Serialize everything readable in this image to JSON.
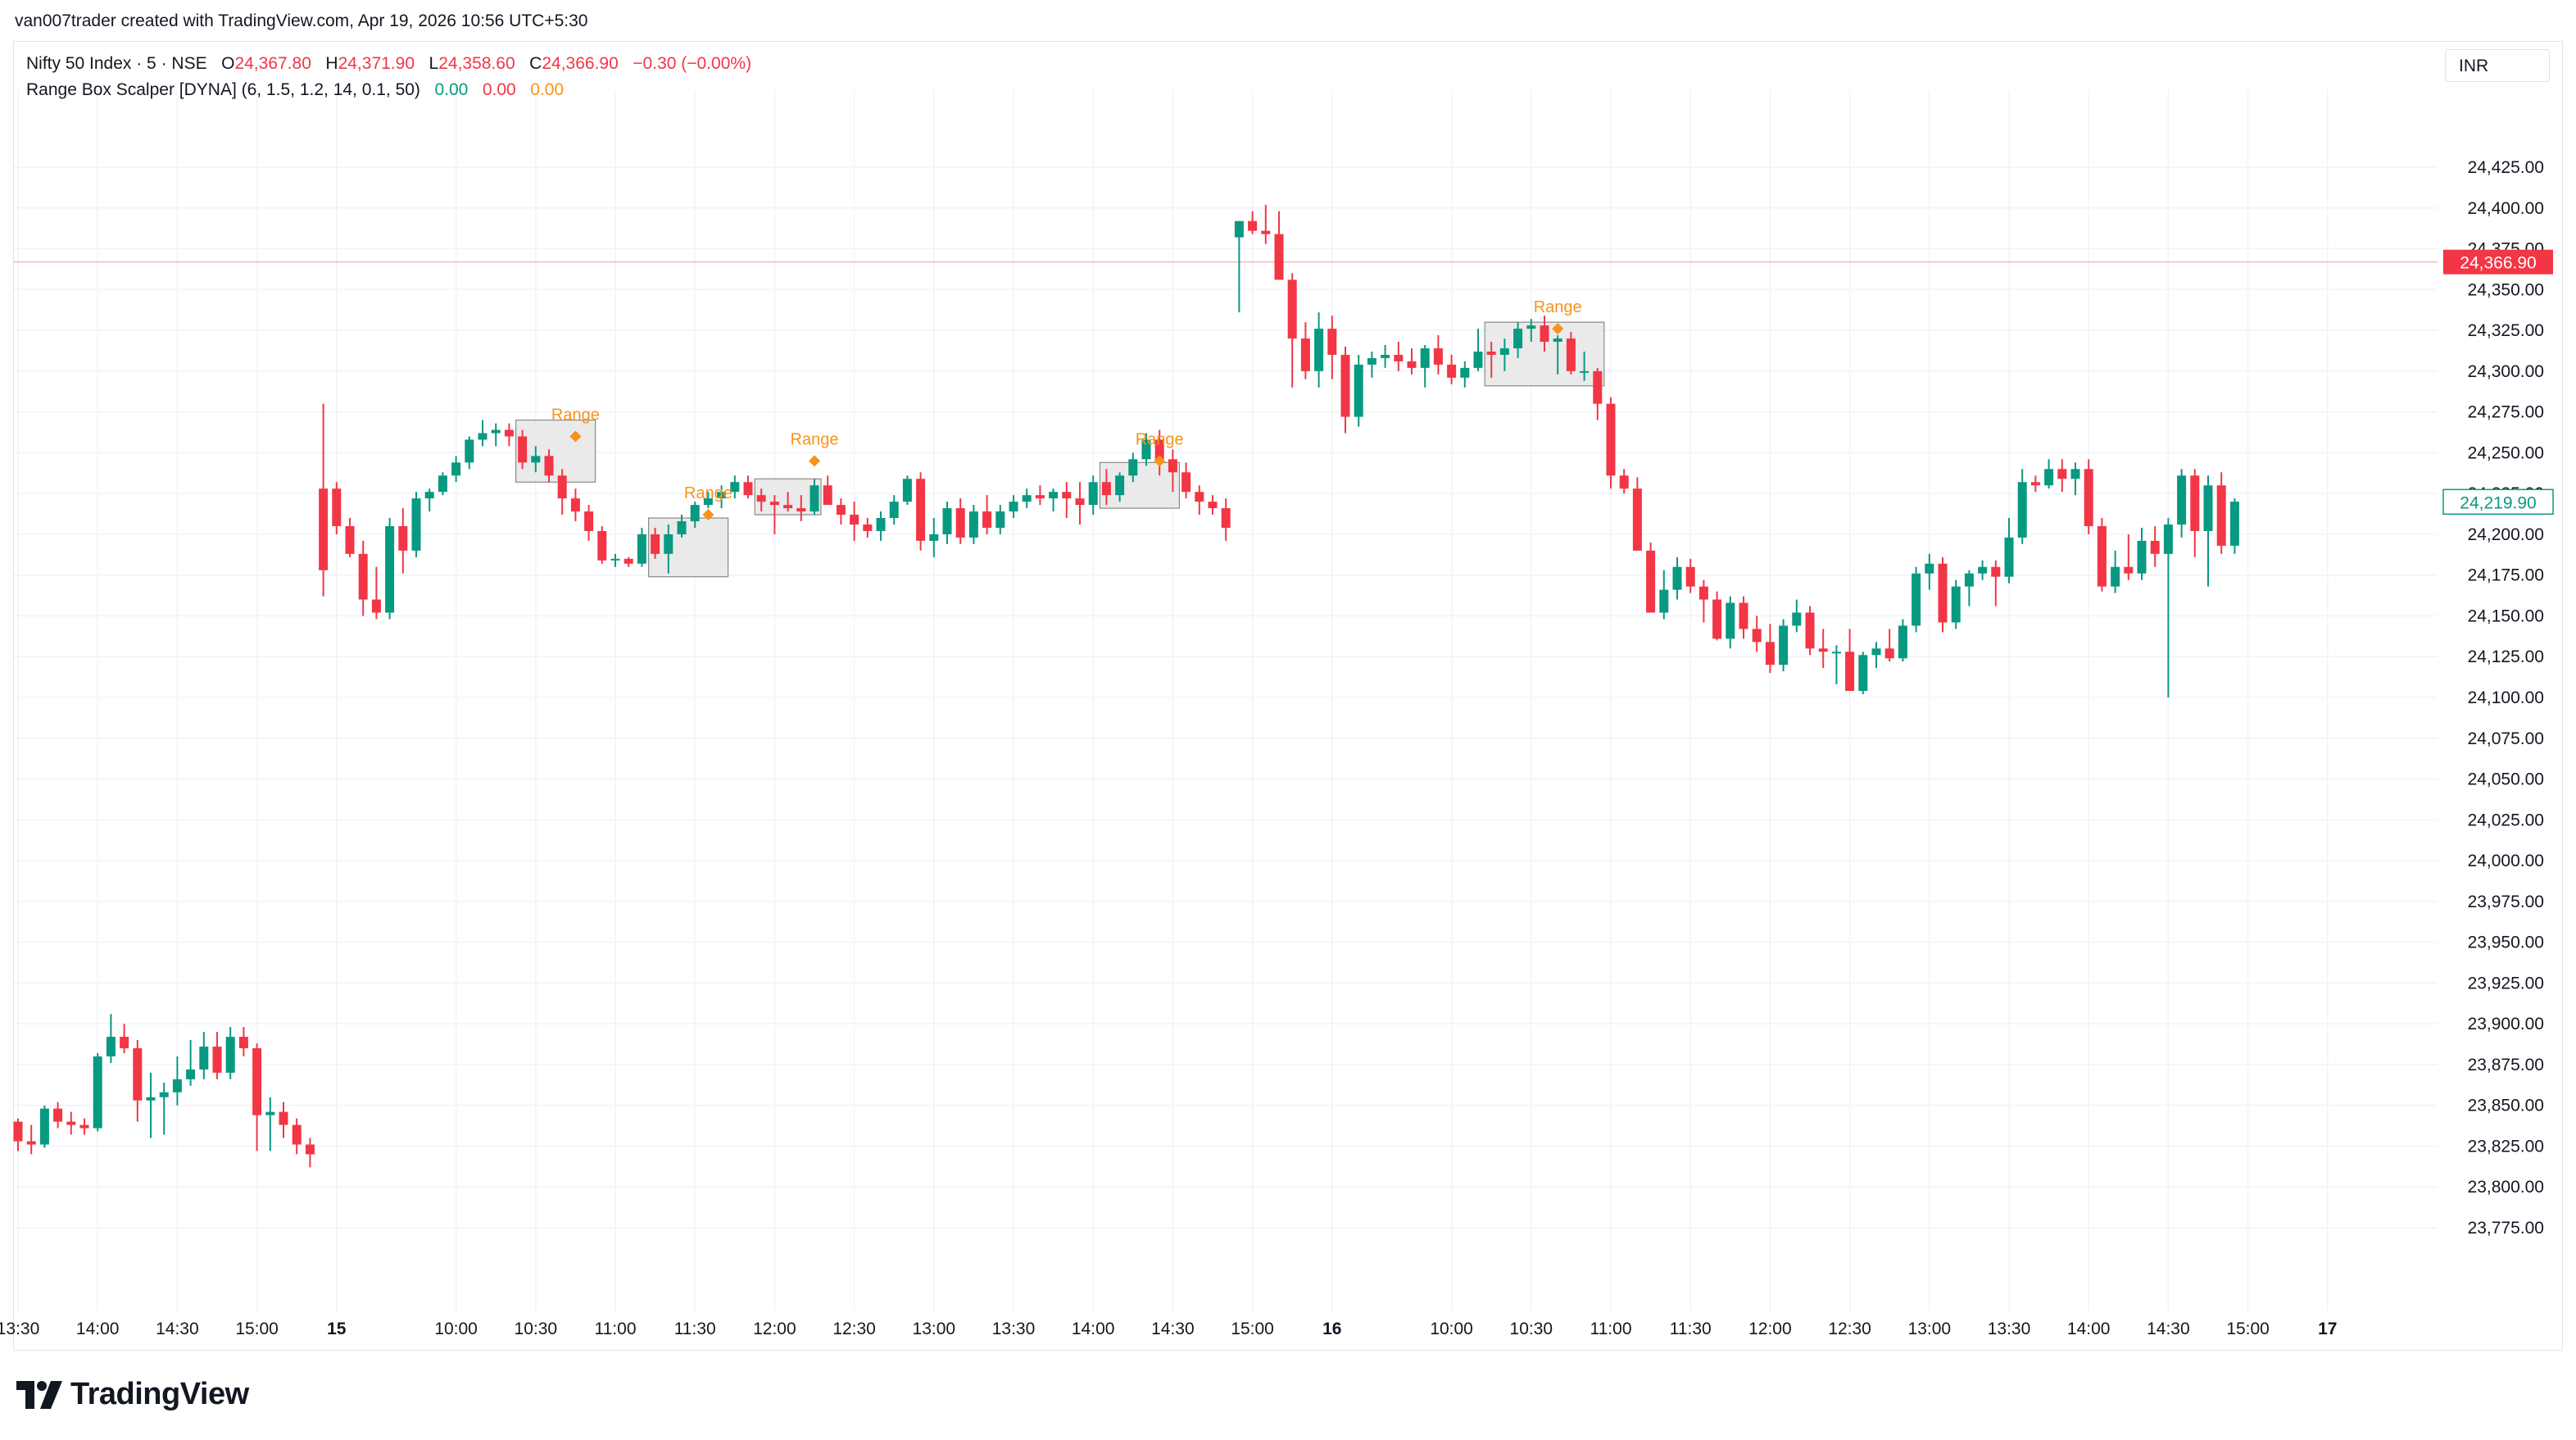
{
  "attribution": "van007trader created with TradingView.com, Apr 19, 2026 10:56 UTC+5:30",
  "legend": {
    "symbol": "Nifty 50 Index · 5 · NSE",
    "o_label": "O",
    "o_value": "24,367.80",
    "h_label": "H",
    "h_value": "24,371.90",
    "l_label": "L",
    "l_value": "24,358.60",
    "c_label": "C",
    "c_value": "24,366.90",
    "change": "−0.30 (−0.00%)",
    "indicator": "Range Box Scalper [DYNA] (6, 1.5, 1.2, 14, 0.1, 50)",
    "ind_v1": "0.00",
    "ind_v2": "0.00",
    "ind_v3": "0.00"
  },
  "currency": "INR",
  "brand": "TradingView",
  "colors": {
    "up": "#089981",
    "down": "#f23645",
    "range": "#f7931a",
    "grid": "#f0f3fa",
    "box": "#e6e6e6"
  },
  "chart_data": {
    "type": "candlestick",
    "ylim": [
      23755,
      24445
    ],
    "y_ticks": [
      "23,775.00",
      "23,800.00",
      "23,825.00",
      "23,850.00",
      "23,875.00",
      "23,900.00",
      "23,925.00",
      "23,950.00",
      "23,975.00",
      "24,000.00",
      "24,025.00",
      "24,050.00",
      "24,075.00",
      "24,100.00",
      "24,125.00",
      "24,150.00",
      "24,175.00",
      "24,200.00",
      "24,225.00",
      "24,250.00",
      "24,275.00",
      "24,300.00",
      "24,325.00",
      "24,350.00",
      "24,375.00",
      "24,400.00",
      "24,425.00"
    ],
    "x_ticks": [
      {
        "label": "13:30",
        "bar": 0,
        "bold": false
      },
      {
        "label": "14:00",
        "bar": 6,
        "bold": false
      },
      {
        "label": "14:30",
        "bar": 12,
        "bold": false
      },
      {
        "label": "15:00",
        "bar": 18,
        "bold": false
      },
      {
        "label": "15",
        "bar": 24,
        "bold": true
      },
      {
        "label": "10:00",
        "bar": 33,
        "bold": false
      },
      {
        "label": "10:30",
        "bar": 39,
        "bold": false
      },
      {
        "label": "11:00",
        "bar": 45,
        "bold": false
      },
      {
        "label": "11:30",
        "bar": 51,
        "bold": false
      },
      {
        "label": "12:00",
        "bar": 57,
        "bold": false
      },
      {
        "label": "12:30",
        "bar": 63,
        "bold": false
      },
      {
        "label": "13:00",
        "bar": 69,
        "bold": false
      },
      {
        "label": "13:30",
        "bar": 75,
        "bold": false
      },
      {
        "label": "14:00",
        "bar": 81,
        "bold": false
      },
      {
        "label": "14:30",
        "bar": 87,
        "bold": false
      },
      {
        "label": "15:00",
        "bar": 93,
        "bold": false
      },
      {
        "label": "16",
        "bar": 99,
        "bold": true
      },
      {
        "label": "10:00",
        "bar": 108,
        "bold": false
      },
      {
        "label": "10:30",
        "bar": 114,
        "bold": false
      },
      {
        "label": "11:00",
        "bar": 120,
        "bold": false
      },
      {
        "label": "11:30",
        "bar": 126,
        "bold": false
      },
      {
        "label": "12:00",
        "bar": 132,
        "bold": false
      },
      {
        "label": "12:30",
        "bar": 138,
        "bold": false
      },
      {
        "label": "13:00",
        "bar": 144,
        "bold": false
      },
      {
        "label": "13:30",
        "bar": 150,
        "bold": false
      },
      {
        "label": "14:00",
        "bar": 156,
        "bold": false
      },
      {
        "label": "14:30",
        "bar": 162,
        "bold": false
      },
      {
        "label": "15:00",
        "bar": 168,
        "bold": false
      },
      {
        "label": "17",
        "bar": 174,
        "bold": true
      }
    ],
    "last_price": {
      "value": 24366.9,
      "label": "24,366.90"
    },
    "ref_price": {
      "value": 24219.9,
      "label": "24,219.90"
    },
    "candles": [
      [
        23840,
        23842,
        23822,
        23828
      ],
      [
        23828,
        23838,
        23820,
        23826
      ],
      [
        23826,
        23850,
        23824,
        23848
      ],
      [
        23848,
        23852,
        23836,
        23840
      ],
      [
        23840,
        23846,
        23832,
        23838
      ],
      [
        23838,
        23842,
        23832,
        23836
      ],
      [
        23836,
        23882,
        23834,
        23880
      ],
      [
        23880,
        23906,
        23876,
        23892
      ],
      [
        23892,
        23900,
        23882,
        23885
      ],
      [
        23885,
        23890,
        23840,
        23853
      ],
      [
        23853,
        23870,
        23830,
        23855
      ],
      [
        23855,
        23864,
        23832,
        23858
      ],
      [
        23858,
        23880,
        23850,
        23866
      ],
      [
        23866,
        23890,
        23862,
        23872
      ],
      [
        23872,
        23895,
        23866,
        23886
      ],
      [
        23886,
        23895,
        23866,
        23870
      ],
      [
        23870,
        23898,
        23866,
        23892
      ],
      [
        23892,
        23898,
        23880,
        23885
      ],
      [
        23885,
        23888,
        23822,
        23844
      ],
      [
        23844,
        23855,
        23822,
        23846
      ],
      [
        23846,
        23852,
        23830,
        23838
      ],
      [
        23838,
        23842,
        23820,
        23826
      ],
      [
        23826,
        23830,
        23812,
        23820
      ],
      [
        24228,
        24280,
        24162,
        24178
      ],
      [
        24228,
        24232,
        24200,
        24205
      ],
      [
        24205,
        24210,
        24186,
        24188
      ],
      [
        24188,
        24196,
        24150,
        24160
      ],
      [
        24160,
        24180,
        24148,
        24152
      ],
      [
        24152,
        24210,
        24148,
        24205
      ],
      [
        24205,
        24216,
        24176,
        24190
      ],
      [
        24190,
        24226,
        24186,
        24222
      ],
      [
        24222,
        24228,
        24214,
        24226
      ],
      [
        24226,
        24238,
        24224,
        24236
      ],
      [
        24236,
        24248,
        24232,
        24244
      ],
      [
        24244,
        24260,
        24240,
        24258
      ],
      [
        24258,
        24270,
        24254,
        24262
      ],
      [
        24262,
        24268,
        24254,
        24264
      ],
      [
        24264,
        24268,
        24254,
        24260
      ],
      [
        24260,
        24264,
        24240,
        24244
      ],
      [
        24244,
        24254,
        24238,
        24248
      ],
      [
        24248,
        24252,
        24232,
        24236
      ],
      [
        24236,
        24240,
        24212,
        24222
      ],
      [
        24222,
        24228,
        24208,
        24214
      ],
      [
        24214,
        24218,
        24196,
        24202
      ],
      [
        24202,
        24205,
        24182,
        24184
      ],
      [
        24184,
        24188,
        24180,
        24185
      ],
      [
        24185,
        24186,
        24180,
        24182
      ],
      [
        24182,
        24204,
        24180,
        24200
      ],
      [
        24200,
        24204,
        24185,
        24188
      ],
      [
        24188,
        24206,
        24176,
        24200
      ],
      [
        24200,
        24212,
        24198,
        24208
      ],
      [
        24208,
        24220,
        24204,
        24218
      ],
      [
        24218,
        24226,
        24216,
        24222
      ],
      [
        24222,
        24230,
        24216,
        24226
      ],
      [
        24226,
        24236,
        24222,
        24232
      ],
      [
        24232,
        24236,
        24222,
        24224
      ],
      [
        24224,
        24228,
        24214,
        24220
      ],
      [
        24220,
        24224,
        24200,
        24218
      ],
      [
        24218,
        24226,
        24214,
        24216
      ],
      [
        24216,
        24224,
        24208,
        24214
      ],
      [
        24214,
        24234,
        24212,
        24230
      ],
      [
        24230,
        24236,
        24218,
        24218
      ],
      [
        24218,
        24222,
        24206,
        24212
      ],
      [
        24212,
        24220,
        24196,
        24206
      ],
      [
        24206,
        24210,
        24198,
        24202
      ],
      [
        24202,
        24214,
        24196,
        24210
      ],
      [
        24210,
        24224,
        24206,
        24220
      ],
      [
        24220,
        24236,
        24218,
        24234
      ],
      [
        24234,
        24238,
        24190,
        24196
      ],
      [
        24196,
        24210,
        24186,
        24200
      ],
      [
        24200,
        24220,
        24194,
        24216
      ],
      [
        24216,
        24222,
        24194,
        24198
      ],
      [
        24198,
        24218,
        24194,
        24214
      ],
      [
        24214,
        24224,
        24200,
        24204
      ],
      [
        24204,
        24218,
        24200,
        24214
      ],
      [
        24214,
        24224,
        24210,
        24220
      ],
      [
        24220,
        24228,
        24216,
        24224
      ],
      [
        24224,
        24230,
        24218,
        24222
      ],
      [
        24222,
        24228,
        24214,
        24226
      ],
      [
        24226,
        24232,
        24210,
        24222
      ],
      [
        24222,
        24232,
        24206,
        24218
      ],
      [
        24218,
        24236,
        24212,
        24232
      ],
      [
        24232,
        24240,
        24218,
        24224
      ],
      [
        24224,
        24238,
        24220,
        24236
      ],
      [
        24236,
        24250,
        24232,
        24246
      ],
      [
        24246,
        24262,
        24242,
        24258
      ],
      [
        24258,
        24264,
        24236,
        24246
      ],
      [
        24246,
        24252,
        24226,
        24238
      ],
      [
        24238,
        24244,
        24222,
        24226
      ],
      [
        24226,
        24230,
        24212,
        24220
      ],
      [
        24220,
        24224,
        24212,
        24216
      ],
      [
        24216,
        24222,
        24196,
        24204
      ],
      [
        24382,
        24390,
        24336,
        24392
      ],
      [
        24392,
        24398,
        24384,
        24386
      ],
      [
        24386,
        24402,
        24378,
        24384
      ],
      [
        24384,
        24398,
        24360,
        24356
      ],
      [
        24356,
        24360,
        24290,
        24320
      ],
      [
        24320,
        24330,
        24295,
        24300
      ],
      [
        24300,
        24336,
        24290,
        24326
      ],
      [
        24326,
        24334,
        24295,
        24310
      ],
      [
        24310,
        24315,
        24262,
        24272
      ],
      [
        24272,
        24310,
        24266,
        24304
      ],
      [
        24304,
        24312,
        24296,
        24308
      ],
      [
        24308,
        24316,
        24302,
        24310
      ],
      [
        24310,
        24318,
        24300,
        24306
      ],
      [
        24306,
        24314,
        24298,
        24302
      ],
      [
        24302,
        24316,
        24290,
        24314
      ],
      [
        24314,
        24322,
        24298,
        24304
      ],
      [
        24304,
        24310,
        24292,
        24296
      ],
      [
        24296,
        24306,
        24290,
        24302
      ],
      [
        24302,
        24326,
        24300,
        24312
      ],
      [
        24312,
        24318,
        24296,
        24310
      ],
      [
        24310,
        24320,
        24300,
        24314
      ],
      [
        24314,
        24330,
        24308,
        24326
      ],
      [
        24326,
        24332,
        24318,
        24328
      ],
      [
        24328,
        24334,
        24312,
        24318
      ],
      [
        24318,
        24322,
        24298,
        24320
      ],
      [
        24320,
        24324,
        24298,
        24300
      ],
      [
        24300,
        24312,
        24294,
        24300
      ],
      [
        24300,
        24302,
        24270,
        24280
      ],
      [
        24280,
        24284,
        24228,
        24236
      ],
      [
        24236,
        24240,
        24225,
        24228
      ],
      [
        24228,
        24235,
        24190,
        24190
      ],
      [
        24190,
        24195,
        24155,
        24152
      ],
      [
        24152,
        24178,
        24148,
        24166
      ],
      [
        24166,
        24186,
        24160,
        24180
      ],
      [
        24180,
        24185,
        24164,
        24168
      ],
      [
        24168,
        24172,
        24146,
        24160
      ],
      [
        24160,
        24165,
        24135,
        24136
      ],
      [
        24136,
        24162,
        24130,
        24158
      ],
      [
        24158,
        24162,
        24136,
        24142
      ],
      [
        24142,
        24150,
        24128,
        24134
      ],
      [
        24134,
        24145,
        24115,
        24120
      ],
      [
        24120,
        24148,
        24116,
        24144
      ],
      [
        24144,
        24160,
        24140,
        24152
      ],
      [
        24152,
        24156,
        24126,
        24130
      ],
      [
        24130,
        24142,
        24118,
        24128
      ],
      [
        24128,
        24132,
        24108,
        24128
      ],
      [
        24128,
        24142,
        24104,
        24104
      ],
      [
        24104,
        24128,
        24102,
        24126
      ],
      [
        24126,
        24134,
        24118,
        24130
      ],
      [
        24130,
        24142,
        24122,
        24124
      ],
      [
        24124,
        24148,
        24122,
        24144
      ],
      [
        24144,
        24180,
        24140,
        24176
      ],
      [
        24176,
        24188,
        24166,
        24182
      ],
      [
        24182,
        24186,
        24140,
        24146
      ],
      [
        24146,
        24172,
        24142,
        24168
      ],
      [
        24168,
        24178,
        24156,
        24176
      ],
      [
        24176,
        24184,
        24172,
        24180
      ],
      [
        24180,
        24184,
        24156,
        24174
      ],
      [
        24174,
        24210,
        24170,
        24198
      ],
      [
        24198,
        24240,
        24194,
        24232
      ],
      [
        24232,
        24236,
        24226,
        24230
      ],
      [
        24230,
        24246,
        24228,
        24240
      ],
      [
        24240,
        24246,
        24226,
        24234
      ],
      [
        24234,
        24244,
        24224,
        24240
      ],
      [
        24240,
        24246,
        24200,
        24205
      ],
      [
        24205,
        24210,
        24165,
        24168
      ],
      [
        24168,
        24190,
        24164,
        24180
      ],
      [
        24180,
        24200,
        24172,
        24176
      ],
      [
        24176,
        24204,
        24172,
        24196
      ],
      [
        24196,
        24205,
        24180,
        24188
      ],
      [
        24188,
        24210,
        24100,
        24206
      ],
      [
        24206,
        24240,
        24198,
        24236
      ],
      [
        24236,
        24240,
        24186,
        24202
      ],
      [
        24202,
        24236,
        24168,
        24230
      ],
      [
        24230,
        24238,
        24188,
        24193
      ],
      [
        24193,
        24222,
        24188,
        24220
      ]
    ],
    "range_boxes": [
      {
        "start": 38,
        "end": 43,
        "top": 24270,
        "bottom": 24232,
        "label": "Range",
        "marker_bar": 42,
        "marker_y": 24260
      },
      {
        "start": 48,
        "end": 53,
        "top": 24210,
        "bottom": 24174,
        "label": "Range",
        "marker_bar": 52,
        "marker_y": 24212
      },
      {
        "start": 56,
        "end": 60,
        "top": 24234,
        "bottom": 24212,
        "label": "Range",
        "marker_bar": 60,
        "marker_y": 24245
      },
      {
        "start": 82,
        "end": 87,
        "top": 24244,
        "bottom": 24216,
        "label": "Range",
        "marker_bar": 86,
        "marker_y": 24245
      },
      {
        "start": 111,
        "end": 119,
        "top": 24330,
        "bottom": 24291,
        "label": "Range",
        "marker_bar": 116,
        "marker_y": 24326
      }
    ]
  }
}
